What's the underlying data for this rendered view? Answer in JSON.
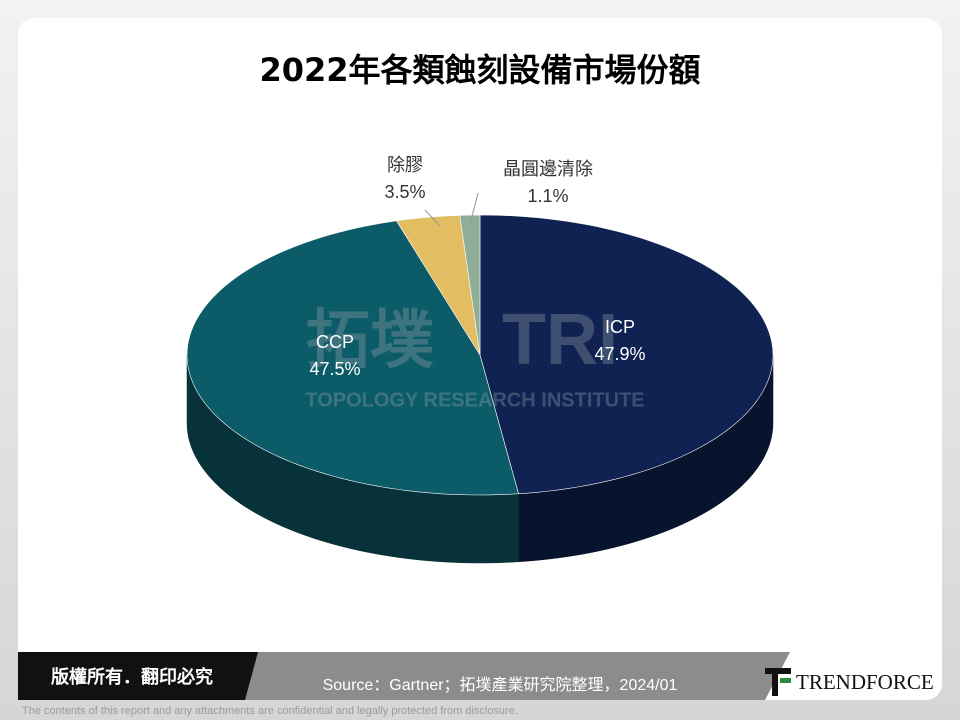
{
  "chart_data": {
    "type": "pie",
    "title": "2022年各類蝕刻設備市場份額",
    "categories": [
      "ICP",
      "CCP",
      "除膠",
      "晶圓邊清除"
    ],
    "values": [
      47.9,
      47.5,
      3.5,
      1.1
    ],
    "value_labels": [
      "47.9%",
      "47.5%",
      "3.5%",
      "1.1%"
    ],
    "colors": [
      "#0f2252",
      "#0c5b69",
      "#e2bd62",
      "#90ad98"
    ]
  },
  "watermark": {
    "logo": "拓墣",
    "mark": "TRI",
    "name": "TOPOLOGY RESEARCH INSTITUTE"
  },
  "footer": {
    "copyright": "版權所有．翻印必究",
    "source": "Source：Gartner；拓墣產業研究院整理，2024/01",
    "brand": "TRENDFORCE",
    "disclaimer": "The contents of this report and any attachments are confidential and legally protected from disclosure."
  }
}
